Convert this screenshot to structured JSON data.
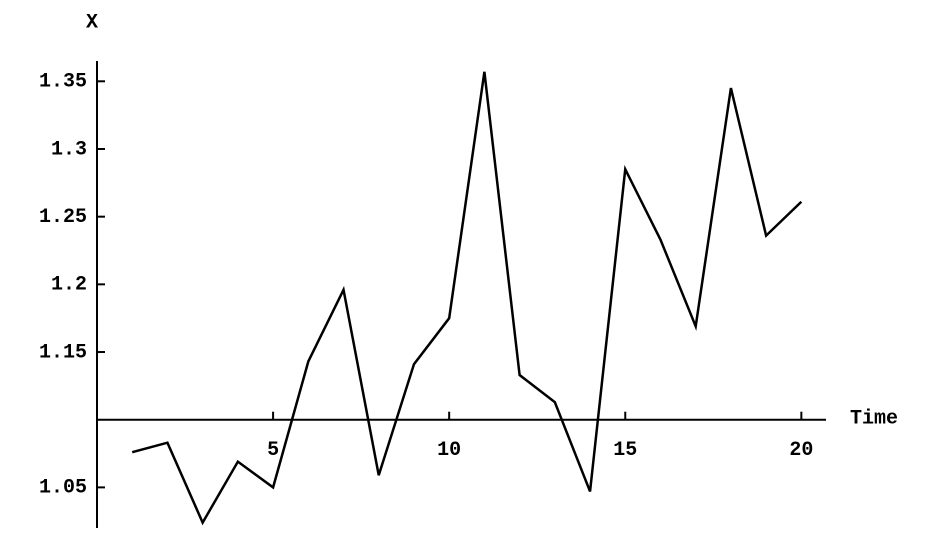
{
  "chart_data": {
    "type": "line",
    "y_label": "X",
    "x_label": "Time",
    "x": [
      1,
      2,
      3,
      4,
      5,
      6,
      7,
      8,
      9,
      10,
      11,
      12,
      13,
      14,
      15,
      16,
      17,
      18,
      19,
      20
    ],
    "series": [
      {
        "color": "#000000",
        "values": [
          1.076,
          1.083,
          1.024,
          1.069,
          1.05,
          1.143,
          1.196,
          1.059,
          1.141,
          1.175,
          1.357,
          1.133,
          1.113,
          1.047,
          1.285,
          1.233,
          1.169,
          1.345,
          1.236,
          1.261
        ]
      }
    ],
    "xlim": [
      0,
      20.7
    ],
    "ylim": [
      1.02,
      1.365
    ],
    "xticks": [
      5,
      10,
      15,
      20
    ],
    "yticks": [
      1.05,
      1.15,
      1.2,
      1.25,
      1.3,
      1.35
    ],
    "axes_cross": [
      0,
      1.1
    ],
    "grid": false
  }
}
